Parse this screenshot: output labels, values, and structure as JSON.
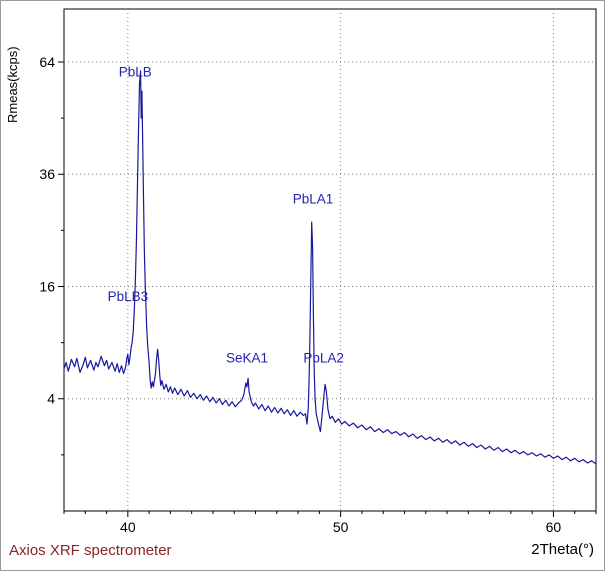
{
  "figure": {
    "ylabel": "Rmeas(kcps)",
    "xlabel": "2Theta(°)",
    "footer": "Axios XRF spectrometer"
  },
  "chart_data": {
    "type": "line",
    "xlabel": "2Theta(°)",
    "ylabel": "Rmeas(kcps)",
    "y_scale": "sqrt",
    "xlim": [
      37,
      62
    ],
    "ylim": [
      0,
      80
    ],
    "x_ticks": [
      40,
      50,
      60
    ],
    "y_ticks": [
      4,
      16,
      36,
      64
    ],
    "y_minor_ticks": [
      1,
      9,
      25,
      49
    ],
    "grid": true,
    "legend": "none",
    "line_color": "#18189c",
    "annotation_color": "#2222b0",
    "grid_color": "#7d7d7d",
    "footer": "Axios XRF spectrometer",
    "annotations": [
      {
        "label": "PbLB",
        "x": 40.35,
        "y": 60
      },
      {
        "label": "PbLB3",
        "x": 40.0,
        "y": 14
      },
      {
        "label": "SeKA1",
        "x": 45.6,
        "y": 7
      },
      {
        "label": "PbLA1",
        "x": 48.7,
        "y": 30
      },
      {
        "label": "PbLA2",
        "x": 49.2,
        "y": 7
      }
    ],
    "peaks": [
      {
        "label": "PbLB",
        "two_theta": 40.6,
        "height_kcps": 61.5
      },
      {
        "label": "PbLB3",
        "two_theta": 41.4,
        "height_kcps": 8.3
      },
      {
        "label": "SeKA1",
        "two_theta": 45.65,
        "height_kcps": 5.6
      },
      {
        "label": "PbLA1",
        "two_theta": 48.64,
        "height_kcps": 26.5
      },
      {
        "label": "PbLA2",
        "two_theta": 49.27,
        "height_kcps": 5.1
      }
    ],
    "series": [
      {
        "name": "spectrum",
        "points": [
          [
            37.0,
            6.4
          ],
          [
            37.1,
            7.0
          ],
          [
            37.2,
            6.2
          ],
          [
            37.35,
            7.3
          ],
          [
            37.5,
            6.6
          ],
          [
            37.6,
            7.4
          ],
          [
            37.75,
            6.1
          ],
          [
            37.9,
            6.8
          ],
          [
            38.0,
            7.5
          ],
          [
            38.1,
            6.5
          ],
          [
            38.25,
            7.2
          ],
          [
            38.4,
            6.3
          ],
          [
            38.5,
            7.0
          ],
          [
            38.6,
            6.6
          ],
          [
            38.75,
            7.6
          ],
          [
            38.9,
            6.7
          ],
          [
            39.0,
            7.2
          ],
          [
            39.1,
            6.4
          ],
          [
            39.25,
            7.0
          ],
          [
            39.4,
            6.2
          ],
          [
            39.5,
            6.9
          ],
          [
            39.6,
            6.1
          ],
          [
            39.7,
            6.7
          ],
          [
            39.8,
            6.0
          ],
          [
            39.9,
            6.6
          ],
          [
            39.95,
            7.4
          ],
          [
            40.0,
            7.8
          ],
          [
            40.05,
            6.8
          ],
          [
            40.1,
            7.5
          ],
          [
            40.15,
            8.4
          ],
          [
            40.2,
            9.0
          ],
          [
            40.25,
            10.2
          ],
          [
            40.3,
            12.5
          ],
          [
            40.35,
            16.5
          ],
          [
            40.4,
            23
          ],
          [
            40.45,
            33
          ],
          [
            40.5,
            46
          ],
          [
            40.55,
            58
          ],
          [
            40.6,
            61.5
          ],
          [
            40.63,
            49
          ],
          [
            40.66,
            56
          ],
          [
            40.7,
            43
          ],
          [
            40.74,
            30
          ],
          [
            40.78,
            21
          ],
          [
            40.83,
            15
          ],
          [
            40.88,
            11
          ],
          [
            40.93,
            8.8
          ],
          [
            41.0,
            7.0
          ],
          [
            41.05,
            5.4
          ],
          [
            41.1,
            4.8
          ],
          [
            41.15,
            5.3
          ],
          [
            41.2,
            4.9
          ],
          [
            41.3,
            6.0
          ],
          [
            41.35,
            7.4
          ],
          [
            41.4,
            8.3
          ],
          [
            41.45,
            7.2
          ],
          [
            41.5,
            5.8
          ],
          [
            41.55,
            5.0
          ],
          [
            41.6,
            5.4
          ],
          [
            41.7,
            4.7
          ],
          [
            41.8,
            5.1
          ],
          [
            41.9,
            4.5
          ],
          [
            42.0,
            4.9
          ],
          [
            42.1,
            4.4
          ],
          [
            42.2,
            4.8
          ],
          [
            42.35,
            4.3
          ],
          [
            42.5,
            4.7
          ],
          [
            42.65,
            4.2
          ],
          [
            42.8,
            4.6
          ],
          [
            42.95,
            4.1
          ],
          [
            43.1,
            4.4
          ],
          [
            43.25,
            4.0
          ],
          [
            43.4,
            4.3
          ],
          [
            43.55,
            3.9
          ],
          [
            43.7,
            4.2
          ],
          [
            43.85,
            3.8
          ],
          [
            44.0,
            4.1
          ],
          [
            44.15,
            3.7
          ],
          [
            44.3,
            4.0
          ],
          [
            44.45,
            3.6
          ],
          [
            44.6,
            3.9
          ],
          [
            44.75,
            3.5
          ],
          [
            44.9,
            3.8
          ],
          [
            45.05,
            3.45
          ],
          [
            45.2,
            3.7
          ],
          [
            45.35,
            3.9
          ],
          [
            45.45,
            4.3
          ],
          [
            45.55,
            5.2
          ],
          [
            45.6,
            4.9
          ],
          [
            45.65,
            5.6
          ],
          [
            45.7,
            4.5
          ],
          [
            45.8,
            3.8
          ],
          [
            45.9,
            3.5
          ],
          [
            46.0,
            3.7
          ],
          [
            46.15,
            3.3
          ],
          [
            46.3,
            3.6
          ],
          [
            46.45,
            3.2
          ],
          [
            46.6,
            3.5
          ],
          [
            46.75,
            3.1
          ],
          [
            46.9,
            3.4
          ],
          [
            47.05,
            3.05
          ],
          [
            47.2,
            3.35
          ],
          [
            47.35,
            3.0
          ],
          [
            47.5,
            3.25
          ],
          [
            47.65,
            2.9
          ],
          [
            47.8,
            3.2
          ],
          [
            47.95,
            2.85
          ],
          [
            48.1,
            3.1
          ],
          [
            48.25,
            2.9
          ],
          [
            48.35,
            3.0
          ],
          [
            48.42,
            2.4
          ],
          [
            48.48,
            3.4
          ],
          [
            48.52,
            5.5
          ],
          [
            48.56,
            10
          ],
          [
            48.6,
            17
          ],
          [
            48.64,
            26.5
          ],
          [
            48.68,
            22
          ],
          [
            48.72,
            12
          ],
          [
            48.76,
            6.0
          ],
          [
            48.8,
            4.0
          ],
          [
            48.85,
            3.0
          ],
          [
            48.92,
            2.6
          ],
          [
            49.0,
            2.2
          ],
          [
            49.05,
            2.0
          ],
          [
            49.12,
            2.8
          ],
          [
            49.2,
            4.0
          ],
          [
            49.27,
            5.1
          ],
          [
            49.33,
            4.5
          ],
          [
            49.4,
            3.3
          ],
          [
            49.5,
            2.7
          ],
          [
            49.6,
            2.85
          ],
          [
            49.75,
            2.5
          ],
          [
            49.9,
            2.7
          ],
          [
            50.05,
            2.4
          ],
          [
            50.2,
            2.55
          ],
          [
            50.4,
            2.3
          ],
          [
            50.6,
            2.45
          ],
          [
            50.8,
            2.2
          ],
          [
            51.0,
            2.35
          ],
          [
            51.2,
            2.1
          ],
          [
            51.4,
            2.25
          ],
          [
            51.6,
            2.0
          ],
          [
            51.8,
            2.15
          ],
          [
            52.0,
            1.95
          ],
          [
            52.2,
            2.1
          ],
          [
            52.4,
            1.9
          ],
          [
            52.6,
            2.0
          ],
          [
            52.8,
            1.82
          ],
          [
            53.0,
            1.95
          ],
          [
            53.2,
            1.75
          ],
          [
            53.4,
            1.88
          ],
          [
            53.6,
            1.68
          ],
          [
            53.8,
            1.8
          ],
          [
            54.0,
            1.62
          ],
          [
            54.2,
            1.74
          ],
          [
            54.4,
            1.56
          ],
          [
            54.6,
            1.68
          ],
          [
            54.8,
            1.5
          ],
          [
            55.0,
            1.62
          ],
          [
            55.2,
            1.44
          ],
          [
            55.4,
            1.56
          ],
          [
            55.6,
            1.38
          ],
          [
            55.8,
            1.5
          ],
          [
            56.0,
            1.33
          ],
          [
            56.2,
            1.44
          ],
          [
            56.4,
            1.28
          ],
          [
            56.6,
            1.38
          ],
          [
            56.8,
            1.22
          ],
          [
            57.0,
            1.33
          ],
          [
            57.2,
            1.17
          ],
          [
            57.4,
            1.28
          ],
          [
            57.6,
            1.12
          ],
          [
            57.8,
            1.22
          ],
          [
            58.0,
            1.08
          ],
          [
            58.2,
            1.17
          ],
          [
            58.4,
            1.04
          ],
          [
            58.6,
            1.12
          ],
          [
            58.8,
            1.0
          ],
          [
            59.0,
            1.08
          ],
          [
            59.2,
            0.96
          ],
          [
            59.4,
            1.04
          ],
          [
            59.6,
            0.92
          ],
          [
            59.8,
            1.0
          ],
          [
            60.0,
            0.88
          ],
          [
            60.2,
            0.96
          ],
          [
            60.4,
            0.84
          ],
          [
            60.6,
            0.92
          ],
          [
            60.8,
            0.8
          ],
          [
            61.0,
            0.88
          ],
          [
            61.2,
            0.77
          ],
          [
            61.4,
            0.84
          ],
          [
            61.6,
            0.73
          ],
          [
            61.8,
            0.8
          ],
          [
            62.0,
            0.7
          ]
        ]
      }
    ]
  }
}
